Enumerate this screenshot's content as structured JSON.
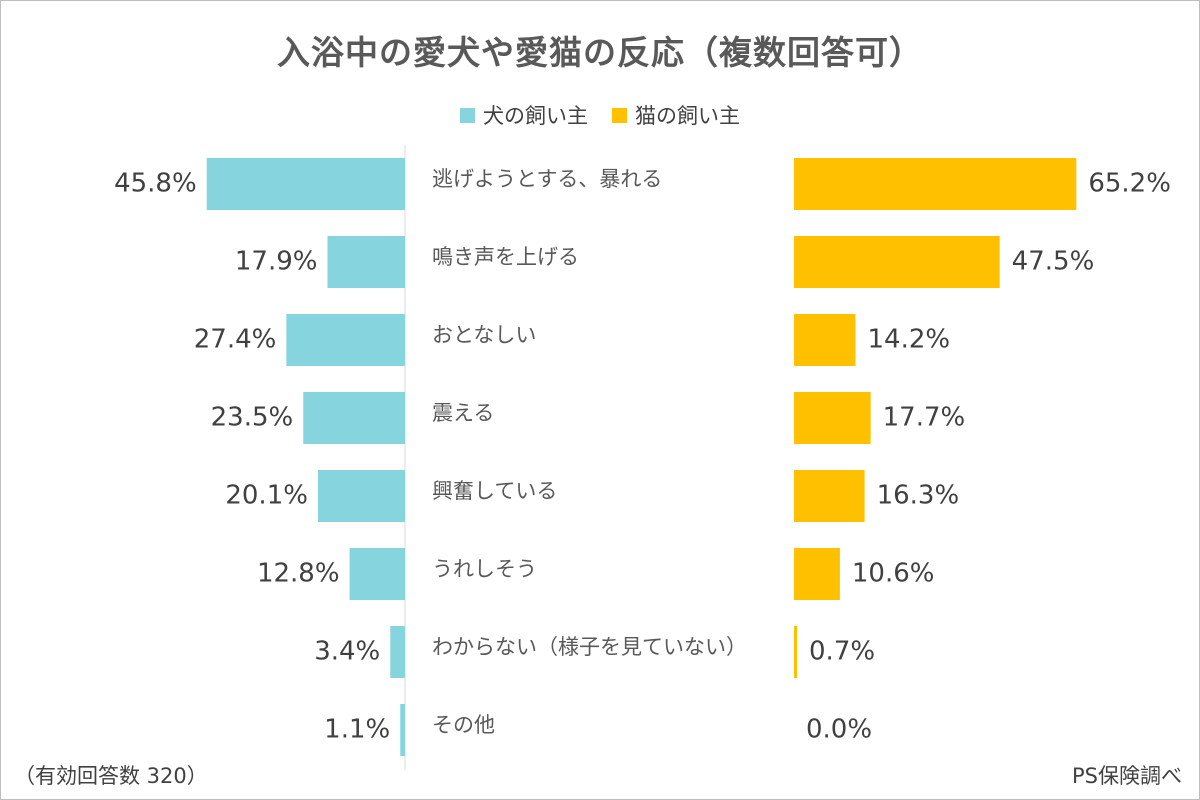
{
  "chart_data": {
    "type": "bar",
    "orientation": "horizontal-butterfly",
    "title": "入浴中の愛犬や愛猫の反応（複数回答可）",
    "categories": [
      "逃げようとする、暴れる",
      "鳴き声を上げる",
      "おとなしい",
      "震える",
      "興奮している",
      "うれしそう",
      "わからない（様子を見ていない）",
      "その他"
    ],
    "series": [
      {
        "name": "犬の飼い主",
        "color": "#86d5de",
        "values": [
          45.8,
          17.9,
          27.4,
          23.5,
          20.1,
          12.8,
          3.4,
          1.1
        ],
        "labels": [
          "45.8%",
          "17.9%",
          "27.4%",
          "23.5%",
          "20.1%",
          "12.8%",
          "3.4%",
          "1.1%"
        ]
      },
      {
        "name": "猫の飼い主",
        "color": "#ffc000",
        "values": [
          65.2,
          47.5,
          14.2,
          17.7,
          16.3,
          10.6,
          0.7,
          0.0
        ],
        "labels": [
          "65.2%",
          "47.5%",
          "14.2%",
          "17.7%",
          "16.3%",
          "10.6%",
          "0.7%",
          "0.0%"
        ]
      }
    ],
    "legend_position": "top-center",
    "grid": false
  },
  "footer": {
    "sample_note": "（有効回答数 320）",
    "source": "PS保険調べ"
  }
}
